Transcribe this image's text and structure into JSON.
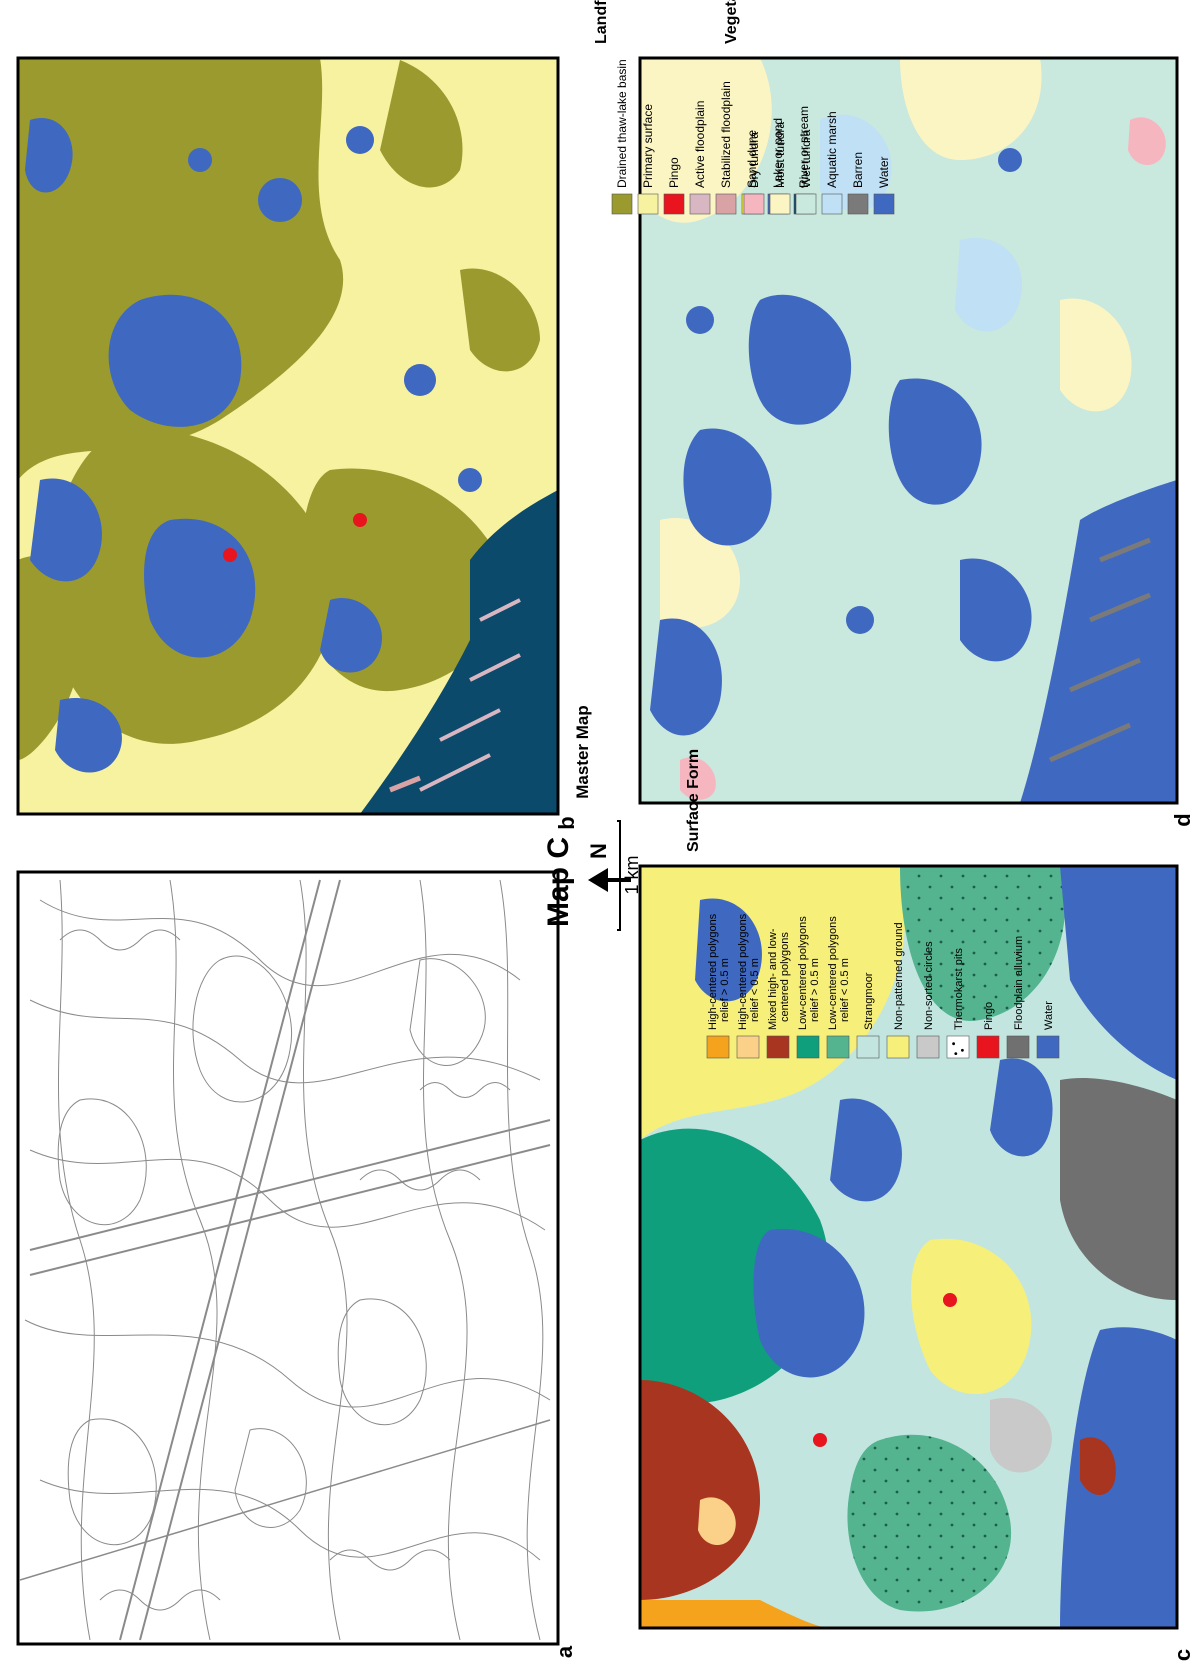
{
  "figure": {
    "title": "Map C",
    "master_map_label": "Master Map",
    "north_label": "N",
    "scale_label": "1 km",
    "panel_letters": {
      "a": "a",
      "b": "b",
      "c": "c",
      "d": "d"
    }
  },
  "legends": {
    "landform": {
      "title": "Landform",
      "items": [
        {
          "label": "Drained thaw-lake basin",
          "color": "#9a9a2e"
        },
        {
          "label": "Primary surface",
          "color": "#f6f2a0"
        },
        {
          "label": "Pingo",
          "color": "#e8141e"
        },
        {
          "label": "Active floodplain",
          "color": "#d9b7c2"
        },
        {
          "label": "Stabilized floodplain",
          "color": "#d9a3a6"
        },
        {
          "label": "Sand dune",
          "color": "#f4ef2a"
        },
        {
          "label": "Lake or pond",
          "color": "#3f68c0"
        },
        {
          "label": "River or stream",
          "color": "#0b4a6b"
        }
      ]
    },
    "vegetation": {
      "title": "Vegetation",
      "items": [
        {
          "label": "Dry tundra",
          "color": "#f5b6c0"
        },
        {
          "label": "Moist tundra",
          "color": "#fbf5c4"
        },
        {
          "label": "Wet tundra",
          "color": "#c9e8de"
        },
        {
          "label": "Aquatic marsh",
          "color": "#bfe0f5"
        },
        {
          "label": "Barren",
          "color": "#7a7a7a"
        },
        {
          "label": "Water",
          "color": "#3f68c0"
        }
      ]
    },
    "surface_form": {
      "title": "Surface Form",
      "items": [
        {
          "label_lines": [
            "High-centered polygons",
            "relief > 0.5 m"
          ],
          "color": "#f5a21c"
        },
        {
          "label_lines": [
            "High-centered polygons",
            "relief < 0.5 m"
          ],
          "color": "#fbd18a"
        },
        {
          "label_lines": [
            "Mixed high- and low-",
            "centered polygons"
          ],
          "color": "#a8351f"
        },
        {
          "label_lines": [
            "Low-centered polygons",
            "relief > 0.5 m"
          ],
          "color": "#0f9f7d"
        },
        {
          "label_lines": [
            "Low-centered polygons",
            "relief < 0.5 m"
          ],
          "color": "#53b48f"
        },
        {
          "label_lines": [
            "Strangmoor"
          ],
          "color": "#c2e6df"
        },
        {
          "label_lines": [
            "Non-patterned ground"
          ],
          "color": "#f6ef7a"
        },
        {
          "label_lines": [
            "Non-sorted circles"
          ],
          "color": "#c9c9c9"
        },
        {
          "label_lines": [
            "Thermokarst pits"
          ],
          "color": "#ffffff"
        },
        {
          "label_lines": [
            "Pingo"
          ],
          "color": "#e8141e"
        },
        {
          "label_lines": [
            "Floodplain alluvium"
          ],
          "color": "#707070"
        },
        {
          "label_lines": [
            "Water"
          ],
          "color": "#3f68c0"
        }
      ]
    }
  }
}
